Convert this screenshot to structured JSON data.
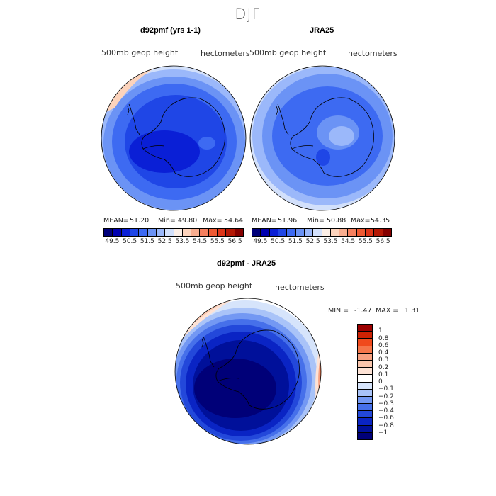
{
  "page": {
    "season": "DJF"
  },
  "panels": {
    "model": {
      "title": "d92pmf (yrs 1-1)",
      "field_label": "500mb geop height",
      "units": "hectometers",
      "mean_label": "MEAN=",
      "mean": "51.20",
      "min_label": "Min=",
      "min": "49.80",
      "max_label": "Max=",
      "max": "54.64"
    },
    "obs": {
      "title": "JRA25",
      "field_label": "500mb geop height",
      "units": "hectometers",
      "mean_label": "MEAN=",
      "mean": "51.96",
      "min_label": "Min=",
      "min": "50.88",
      "max_label": "Max=",
      "max": "54.35"
    },
    "diff": {
      "title": "d92pmf - JRA25",
      "field_label": "500mb geop height",
      "units": "hectometers",
      "min_label": "MIN =",
      "min": "-1.47",
      "max_label": "MAX =",
      "max": "1.31"
    }
  },
  "colorbars": {
    "field": {
      "colors": [
        "#00007a",
        "#0000b0",
        "#0a1fd6",
        "#1f46e6",
        "#3d6af2",
        "#6b93f5",
        "#9bb8fa",
        "#d2e0fb",
        "#fbeee6",
        "#fcd3bc",
        "#f8ad8f",
        "#f5805f",
        "#ee5a33",
        "#dd3518",
        "#b41805",
        "#850000"
      ],
      "labels": [
        "49.5",
        "50.5",
        "51.5",
        "52.5",
        "53.5",
        "54.5",
        "55.5",
        "56.5"
      ]
    },
    "diff": {
      "colors_top_to_bottom": [
        "#9c0000",
        "#cc2204",
        "#f04a1c",
        "#f5764a",
        "#f7a181",
        "#fac6ad",
        "#fde2d5",
        "#ffffff",
        "#d6e4fb",
        "#a9c3f8",
        "#7398f3",
        "#4670ea",
        "#2348da",
        "#0a24c4",
        "#00109a",
        "#000078"
      ],
      "labels": [
        "1",
        "0.8",
        "0.6",
        "0.4",
        "0.3",
        "0.2",
        "0.1",
        "0",
        "−0.1",
        "−0.2",
        "−0.3",
        "−0.4",
        "−0.6",
        "−0.8",
        "−1"
      ]
    }
  },
  "chart_data": [
    {
      "type": "heatmap",
      "title": "d92pmf (yrs 1-1)",
      "variable": "500mb geop height",
      "units": "hectometers",
      "projection": "south polar stereographic (Antarctica)",
      "stats": {
        "mean": 51.2,
        "min": 49.8,
        "max": 54.64
      },
      "levels": [
        49.5,
        50.0,
        50.5,
        51.0,
        51.5,
        52.0,
        52.5,
        53.0,
        53.5,
        54.0,
        54.5,
        55.0,
        55.5,
        56.0,
        56.5
      ]
    },
    {
      "type": "heatmap",
      "title": "JRA25",
      "variable": "500mb geop height",
      "units": "hectometers",
      "projection": "south polar stereographic (Antarctica)",
      "stats": {
        "mean": 51.96,
        "min": 50.88,
        "max": 54.35
      },
      "levels": [
        49.5,
        50.0,
        50.5,
        51.0,
        51.5,
        52.0,
        52.5,
        53.0,
        53.5,
        54.0,
        54.5,
        55.0,
        55.5,
        56.0,
        56.5
      ]
    },
    {
      "type": "heatmap",
      "title": "d92pmf - JRA25",
      "variable": "500mb geop height",
      "units": "hectometers",
      "projection": "south polar stereographic (Antarctica)",
      "stats": {
        "min": -1.47,
        "max": 1.31
      },
      "levels": [
        -1,
        -0.8,
        -0.6,
        -0.4,
        -0.3,
        -0.2,
        -0.1,
        0,
        0.1,
        0.2,
        0.3,
        0.4,
        0.6,
        0.8,
        1
      ]
    }
  ]
}
